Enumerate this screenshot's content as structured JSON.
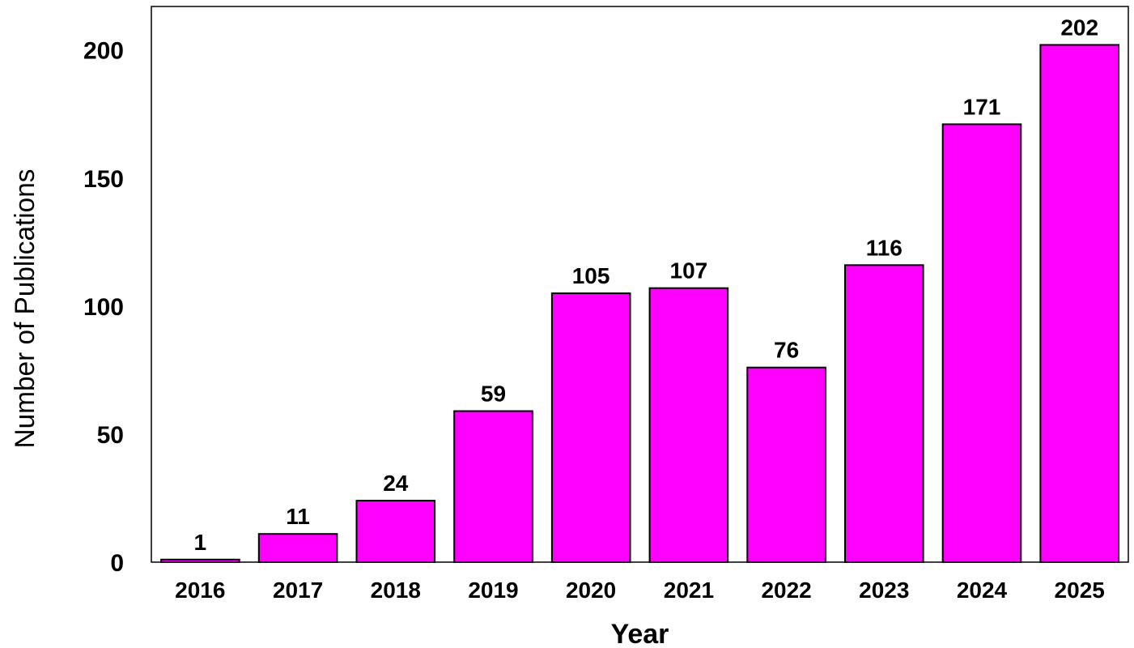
{
  "chart_data": {
    "type": "bar",
    "categories": [
      "2016",
      "2017",
      "2018",
      "2019",
      "2020",
      "2021",
      "2022",
      "2023",
      "2024",
      "2025"
    ],
    "values": [
      1,
      11,
      24,
      59,
      105,
      107,
      76,
      116,
      171,
      202
    ],
    "data_labels": [
      "1",
      "11",
      "24",
      "59",
      "105",
      "107",
      "76",
      "116",
      "171",
      "202"
    ],
    "title": "",
    "xlabel": "Year",
    "ylabel": "Number of Publications",
    "ylim": [
      0,
      217
    ],
    "yticks": [
      0,
      50,
      100,
      150,
      200
    ],
    "ytick_labels": [
      "0",
      "50",
      "100",
      "150",
      "200"
    ],
    "grid": false,
    "legend": "none",
    "bar_color": "#ff00ff",
    "bar_edge_color": "#000000"
  }
}
